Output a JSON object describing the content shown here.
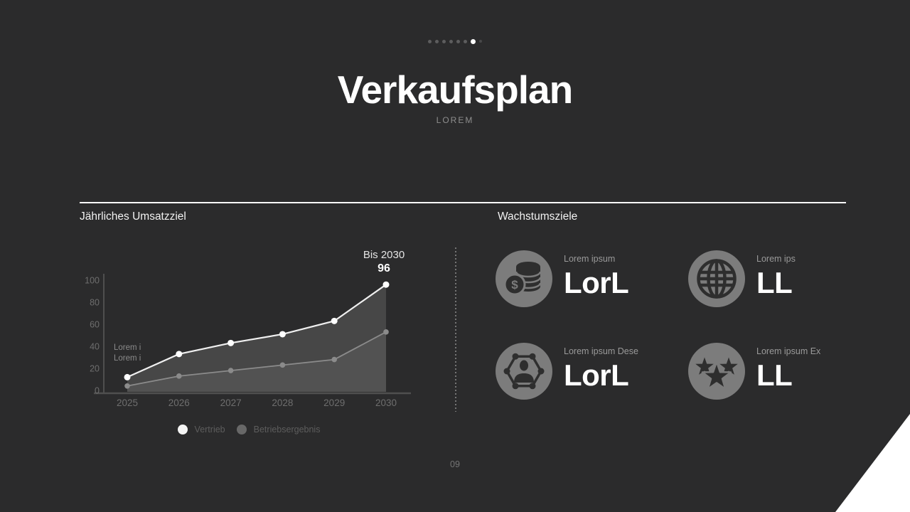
{
  "slide": {
    "title": "Verkaufsplan",
    "subtitle": "LOREM",
    "page_number": "09",
    "pagination": {
      "total": 8,
      "active_index": 6
    }
  },
  "left_panel": {
    "heading": "Jährliches Umsatzziel"
  },
  "right_panel": {
    "heading": "Wachstumsziele",
    "items": [
      {
        "icon": "coins-dollar-icon",
        "label": "Lorem ipsum",
        "value": "LorL"
      },
      {
        "icon": "globe-icon",
        "label": "Lorem ips",
        "value": "LL"
      },
      {
        "icon": "person-network-icon",
        "label": "Lorem ipsum Dese",
        "value": "LorL"
      },
      {
        "icon": "stars-icon",
        "label": "Lorem ipsum Ex",
        "value": "LL"
      }
    ]
  },
  "chart_data": {
    "type": "area",
    "title": "Jährliches Umsatzziel",
    "categories": [
      "2025",
      "2026",
      "2027",
      "2028",
      "2029",
      "2030"
    ],
    "series": [
      {
        "name": "Vertrieb",
        "values": [
          12,
          33,
          43,
          51,
          63,
          96
        ],
        "color": "#f0f0f0",
        "fill": "#474747"
      },
      {
        "name": "Betriebsergebnis",
        "values": [
          4,
          13,
          18,
          23,
          28,
          53
        ],
        "color": "#8b8b8b",
        "fill": "#525252"
      }
    ],
    "ylim": [
      0,
      100
    ],
    "yticks": [
      0,
      20,
      40,
      60,
      80,
      100
    ],
    "legend_position": "bottom",
    "grid": false,
    "annotation": {
      "label": "Bis 2030",
      "value": "96"
    },
    "inline_note": [
      "Lorem i",
      "Lorem i"
    ]
  },
  "colors": {
    "background": "#2b2b2c",
    "accent_white": "#ffffff",
    "icon_circle": "#7c7c7c",
    "icon_glyph": "#2e2e2e",
    "muted_text": "#9a9a9a"
  }
}
